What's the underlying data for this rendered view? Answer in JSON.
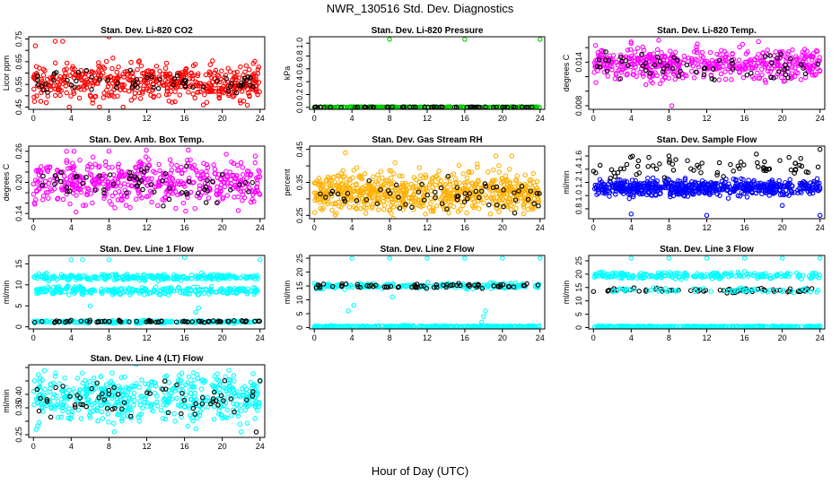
{
  "figure": {
    "title": "NWR_130516  Std. Dev. Diagnostics",
    "xlabel": "Hour of Day (UTC)"
  },
  "colors": {
    "red": "#ff0000",
    "green": "#00cc00",
    "magenta": "#ff00ff",
    "orange": "#ffb000",
    "blue": "#0000ff",
    "cyan": "#00ffff",
    "black": "#000000"
  },
  "chart_data": [
    {
      "type": "scatter",
      "title": "Stan. Dev. Li-820 CO2",
      "ylabel": "Licor ppm",
      "xlim": [
        -0.5,
        24.5
      ],
      "ylim": [
        0.44,
        0.76
      ],
      "xticks": [
        0,
        4,
        8,
        12,
        16,
        20,
        24
      ],
      "yticks": [
        0.45,
        0.5,
        0.55,
        0.6,
        0.65,
        0.7,
        0.75
      ],
      "ytick_labels": [
        "0.45",
        "",
        "0.55",
        "",
        "0.65",
        "",
        "0.75"
      ],
      "series": [
        {
          "color": "red",
          "n": 500,
          "center": 0.56,
          "spread": 0.04,
          "outliers": [
            [
              0.2,
              0.72
            ],
            [
              2.3,
              0.74
            ],
            [
              3.1,
              0.74
            ],
            [
              8,
              0.76
            ],
            [
              3.8,
              0.45
            ],
            [
              7,
              0.45
            ],
            [
              9.5,
              0.45
            ]
          ]
        },
        {
          "color": "black",
          "n": 60,
          "center": 0.55,
          "spread": 0.025,
          "outliers": []
        }
      ]
    },
    {
      "type": "scatter",
      "title": "Stan. Dev. Li-820 Pressure",
      "ylabel": "kPa",
      "xlim": [
        -0.5,
        24.5
      ],
      "ylim": [
        -0.03,
        1.1
      ],
      "xticks": [
        0,
        4,
        8,
        12,
        16,
        20,
        24
      ],
      "yticks": [
        0.0,
        0.2,
        0.4,
        0.6,
        0.8,
        1.0
      ],
      "ytick_labels": [
        "0.0",
        "0.2",
        "0.4",
        "0.6",
        "0.8",
        "1.0"
      ],
      "series": [
        {
          "color": "green",
          "n": 250,
          "center": 0.005,
          "spread": 0.003,
          "outliers": [
            [
              0,
              0.0
            ],
            [
              8,
              1.06
            ],
            [
              16,
              1.06
            ],
            [
              24,
              1.06
            ]
          ]
        },
        {
          "color": "black",
          "n": 60,
          "center": 0.005,
          "spread": 0.002,
          "outliers": []
        }
      ]
    },
    {
      "type": "scatter",
      "title": "Stan. Dev. Li-820 Temp.",
      "ylabel": "degrees C",
      "xlim": [
        -0.5,
        24.5
      ],
      "ylim": [
        0.0075,
        0.0175
      ],
      "xticks": [
        0,
        4,
        8,
        12,
        16,
        20,
        24
      ],
      "yticks": [
        0.008,
        0.01,
        0.012,
        0.014,
        0.016
      ],
      "ytick_labels": [
        "0.008",
        "",
        "",
        "0.014",
        ""
      ],
      "series": [
        {
          "color": "magenta",
          "n": 500,
          "center": 0.0138,
          "spread": 0.0011,
          "outliers": [
            [
              8.3,
              0.008
            ],
            [
              11,
              0.0165
            ],
            [
              4,
              0.0168
            ]
          ]
        },
        {
          "color": "black",
          "n": 60,
          "center": 0.0135,
          "spread": 0.001,
          "outliers": []
        }
      ]
    },
    {
      "type": "scatter",
      "title": "Stan. Dev. Amb. Box Temp.",
      "ylabel": "degrees C",
      "xlim": [
        -0.5,
        24.5
      ],
      "ylim": [
        0.13,
        0.27
      ],
      "xticks": [
        0,
        4,
        8,
        12,
        16,
        20,
        24
      ],
      "yticks": [
        0.14,
        0.16,
        0.18,
        0.2,
        0.22,
        0.24,
        0.26
      ],
      "ytick_labels": [
        "0.14",
        "",
        "",
        "0.20",
        "",
        "",
        "0.26"
      ],
      "series": [
        {
          "color": "magenta",
          "n": 500,
          "center": 0.2,
          "spread": 0.022,
          "outliers": [
            [
              3.5,
              0.26
            ],
            [
              4.3,
              0.26
            ],
            [
              8,
              0.26
            ]
          ]
        },
        {
          "color": "black",
          "n": 60,
          "center": 0.195,
          "spread": 0.018,
          "outliers": []
        }
      ]
    },
    {
      "type": "scatter",
      "title": "Stan. Dev. Gas Stream RH",
      "ylabel": "percent",
      "xlim": [
        -0.5,
        24.5
      ],
      "ylim": [
        0.24,
        0.46
      ],
      "xticks": [
        0,
        4,
        8,
        12,
        16,
        20,
        24
      ],
      "yticks": [
        0.25,
        0.3,
        0.35,
        0.4,
        0.45
      ],
      "ytick_labels": [
        "0.25",
        "",
        "0.35",
        "",
        "0.45"
      ],
      "series": [
        {
          "color": "orange",
          "n": 700,
          "center": 0.32,
          "spread": 0.03,
          "outliers": [
            [
              3.3,
              0.44
            ],
            [
              19.3,
              0.43
            ],
            [
              21,
              0.43
            ]
          ]
        },
        {
          "color": "black",
          "n": 60,
          "center": 0.315,
          "spread": 0.025,
          "outliers": []
        }
      ]
    },
    {
      "type": "scatter",
      "title": "Stan. Dev. Sample Flow",
      "ylabel": "ml/min",
      "xlim": [
        -0.5,
        24.5
      ],
      "ylim": [
        0.65,
        1.75
      ],
      "xticks": [
        0,
        4,
        8,
        12,
        16,
        20,
        24
      ],
      "yticks": [
        0.8,
        1.0,
        1.2,
        1.4,
        1.6
      ],
      "ytick_labels": [
        "0.8",
        "1.0",
        "1.2",
        "1.4",
        "1.6"
      ],
      "series": [
        {
          "color": "blue",
          "n": 600,
          "center": 1.12,
          "spread": 0.06,
          "outliers": [
            [
              4,
              0.72
            ],
            [
              12,
              0.7
            ],
            [
              24,
              0.7
            ],
            [
              20,
              0.85
            ]
          ]
        },
        {
          "color": "black",
          "n": 70,
          "center": 1.45,
          "spread": 0.08,
          "outliers": [
            [
              8,
              1.6
            ],
            [
              24,
              1.7
            ]
          ]
        }
      ]
    },
    {
      "type": "scatter",
      "title": "Stan. Dev. Line 1 Flow",
      "ylabel": "ml/min",
      "xlim": [
        -0.5,
        24.5
      ],
      "ylim": [
        -0.5,
        17
      ],
      "xticks": [
        0,
        4,
        8,
        12,
        16,
        20,
        24
      ],
      "yticks": [
        0,
        5,
        10,
        15
      ],
      "ytick_labels": [
        "0",
        "5",
        "10",
        "15"
      ],
      "bands": [
        {
          "color": "cyan",
          "n": 260,
          "center": 11.8,
          "spread": 0.35
        },
        {
          "color": "cyan",
          "n": 260,
          "center": 8.6,
          "spread": 0.5
        },
        {
          "color": "cyan",
          "n": 220,
          "center": 1.2,
          "spread": 0.15
        },
        {
          "color": "black",
          "n": 70,
          "center": 1.3,
          "spread": 0.12
        }
      ],
      "series": [
        {
          "color": "cyan",
          "n": 0,
          "center": 0,
          "spread": 0,
          "outliers": [
            [
              4,
              16
            ],
            [
              5.2,
              16
            ],
            [
              8,
              16
            ],
            [
              16,
              16.5
            ],
            [
              24,
              16
            ],
            [
              6,
              5
            ],
            [
              17.2,
              3.5
            ],
            [
              17.5,
              4.5
            ]
          ]
        }
      ]
    },
    {
      "type": "scatter",
      "title": "Stan. Dev. Line 2 Flow",
      "ylabel": "ml/min",
      "xlim": [
        -0.5,
        24.5
      ],
      "ylim": [
        -0.5,
        26
      ],
      "xticks": [
        0,
        4,
        8,
        12,
        16,
        20,
        24
      ],
      "yticks": [
        0,
        5,
        10,
        15,
        20,
        25
      ],
      "ytick_labels": [
        "0",
        "5",
        "10",
        "15",
        "20",
        "25"
      ],
      "bands": [
        {
          "color": "cyan",
          "n": 300,
          "center": 0.4,
          "spread": 0.15
        },
        {
          "color": "cyan",
          "n": 200,
          "center": 15,
          "spread": 0.5
        },
        {
          "color": "black",
          "n": 70,
          "center": 15,
          "spread": 0.4
        }
      ],
      "series": [
        {
          "color": "cyan",
          "n": 0,
          "center": 0,
          "spread": 0,
          "outliers": [
            [
              4,
              25
            ],
            [
              8,
              25
            ],
            [
              12,
              25
            ],
            [
              16,
              25
            ],
            [
              20,
              25
            ],
            [
              24,
              25
            ],
            [
              4.2,
              8
            ],
            [
              3.6,
              6
            ],
            [
              8.3,
              11
            ],
            [
              18,
              4
            ],
            [
              17.8,
              2
            ],
            [
              18.2,
              6
            ]
          ]
        }
      ]
    },
    {
      "type": "scatter",
      "title": "Stan. Dev. Line 3 Flow",
      "ylabel": "ml/min",
      "xlim": [
        -0.5,
        24.5
      ],
      "ylim": [
        -0.5,
        27
      ],
      "xticks": [
        0,
        4,
        8,
        12,
        16,
        20,
        24
      ],
      "yticks": [
        0,
        5,
        10,
        15,
        20,
        25
      ],
      "ytick_labels": [
        "0",
        "5",
        "10",
        "15",
        "20",
        "25"
      ],
      "bands": [
        {
          "color": "cyan",
          "n": 300,
          "center": 0.4,
          "spread": 0.12
        },
        {
          "color": "cyan",
          "n": 220,
          "center": 19.5,
          "spread": 0.6
        },
        {
          "color": "black",
          "n": 70,
          "center": 14,
          "spread": 0.4
        },
        {
          "color": "cyan",
          "n": 60,
          "center": 14,
          "spread": 0.4
        }
      ],
      "series": [
        {
          "color": "cyan",
          "n": 0,
          "center": 0,
          "spread": 0,
          "outliers": [
            [
              4,
              26
            ],
            [
              8,
              26
            ],
            [
              12,
              26
            ],
            [
              16,
              26
            ],
            [
              20,
              26
            ],
            [
              24,
              26
            ],
            [
              16,
              21
            ]
          ]
        }
      ]
    },
    {
      "type": "scatter",
      "title": "Stan. Dev. Line 4 (LT) Flow",
      "ylabel": "ml/min",
      "xlim": [
        -0.5,
        24.5
      ],
      "ylim": [
        0.24,
        0.51
      ],
      "xticks": [
        0,
        4,
        8,
        12,
        16,
        20,
        24
      ],
      "yticks": [
        0.25,
        0.3,
        0.35,
        0.4,
        0.45,
        0.5
      ],
      "ytick_labels": [
        "0.25",
        "",
        "0.35",
        "0.40",
        "",
        ""
      ],
      "series": [
        {
          "color": "cyan",
          "n": 500,
          "center": 0.39,
          "spread": 0.045,
          "outliers": [
            [
              22,
              0.26
            ],
            [
              0.3,
              0.27
            ]
          ]
        },
        {
          "color": "black",
          "n": 60,
          "center": 0.38,
          "spread": 0.04,
          "outliers": [
            [
              23.6,
              0.26
            ],
            [
              24,
              0.45
            ]
          ]
        }
      ]
    }
  ]
}
